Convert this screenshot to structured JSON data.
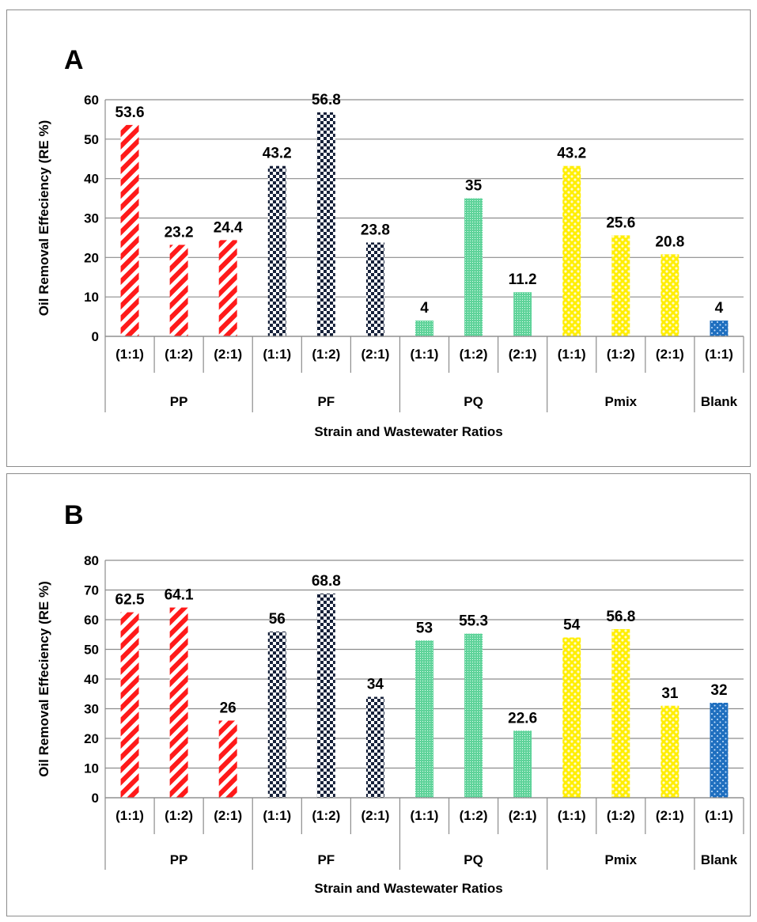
{
  "chart_data": [
    {
      "panel": "A",
      "type": "bar",
      "ylabel": "Oil Removal Effeciency (RE %)",
      "xlabel": "Strain and Wastewater Ratios",
      "ylim": [
        0,
        60
      ],
      "ytick_step": 10,
      "grid": true,
      "groups": [
        {
          "name": "PP",
          "pattern": "red-stripes",
          "bars": [
            {
              "ratio": "(1:1)",
              "value": 53.6,
              "label": "53.6"
            },
            {
              "ratio": "(1:2)",
              "value": 23.2,
              "label": "23.2"
            },
            {
              "ratio": "(2:1)",
              "value": 24.4,
              "label": "24.4"
            }
          ]
        },
        {
          "name": "PF",
          "pattern": "navy-checker",
          "bars": [
            {
              "ratio": "(1:1)",
              "value": 43.2,
              "label": "43.2"
            },
            {
              "ratio": "(1:2)",
              "value": 56.8,
              "label": "56.8"
            },
            {
              "ratio": "(2:1)",
              "value": 23.8,
              "label": "23.8"
            }
          ]
        },
        {
          "name": "PQ",
          "pattern": "green-grid",
          "bars": [
            {
              "ratio": "(1:1)",
              "value": 4,
              "label": "4"
            },
            {
              "ratio": "(1:2)",
              "value": 35,
              "label": "35"
            },
            {
              "ratio": "(2:1)",
              "value": 11.2,
              "label": "11.2"
            }
          ]
        },
        {
          "name": "Pmix",
          "pattern": "yellow-dots",
          "bars": [
            {
              "ratio": "(1:1)",
              "value": 43.2,
              "label": "43.2"
            },
            {
              "ratio": "(1:2)",
              "value": 25.6,
              "label": "25.6"
            },
            {
              "ratio": "(2:1)",
              "value": 20.8,
              "label": "20.8"
            }
          ]
        },
        {
          "name": "Blank",
          "pattern": "blue-dotted",
          "bars": [
            {
              "ratio": "(1:1)",
              "value": 4,
              "label": "4"
            }
          ]
        }
      ]
    },
    {
      "panel": "B",
      "type": "bar",
      "ylabel": "Oil Removal Effeciency (RE %)",
      "xlabel": "Strain and Wastewater Ratios",
      "ylim": [
        0,
        80
      ],
      "ytick_step": 10,
      "grid": true,
      "groups": [
        {
          "name": "PP",
          "pattern": "red-stripes",
          "bars": [
            {
              "ratio": "(1:1)",
              "value": 62.5,
              "label": "62.5"
            },
            {
              "ratio": "(1:2)",
              "value": 64.1,
              "label": "64.1"
            },
            {
              "ratio": "(2:1)",
              "value": 26,
              "label": "26"
            }
          ]
        },
        {
          "name": "PF",
          "pattern": "navy-checker",
          "bars": [
            {
              "ratio": "(1:1)",
              "value": 56,
              "label": "56"
            },
            {
              "ratio": "(1:2)",
              "value": 68.8,
              "label": "68.8"
            },
            {
              "ratio": "(2:1)",
              "value": 34,
              "label": "34"
            }
          ]
        },
        {
          "name": "PQ",
          "pattern": "green-grid",
          "bars": [
            {
              "ratio": "(1:1)",
              "value": 53,
              "label": "53"
            },
            {
              "ratio": "(1:2)",
              "value": 55.3,
              "label": "55.3"
            },
            {
              "ratio": "(2:1)",
              "value": 22.6,
              "label": "22.6"
            }
          ]
        },
        {
          "name": "Pmix",
          "pattern": "yellow-dots",
          "bars": [
            {
              "ratio": "(1:1)",
              "value": 54,
              "label": "54"
            },
            {
              "ratio": "(1:2)",
              "value": 56.8,
              "label": "56.8"
            },
            {
              "ratio": "(2:1)",
              "value": 31,
              "label": "31"
            }
          ]
        },
        {
          "name": "Blank",
          "pattern": "blue-dotted",
          "bars": [
            {
              "ratio": "(1:1)",
              "value": 32,
              "label": "32"
            }
          ]
        }
      ]
    }
  ],
  "colors": {
    "red-stripes": "#ff1a1a",
    "navy-checker": "#16213a",
    "green-grid": "#5fd39a",
    "yellow-dots": "#ffee00",
    "blue-dotted": "#1f6fbf",
    "grid": "#8c8c8c"
  }
}
